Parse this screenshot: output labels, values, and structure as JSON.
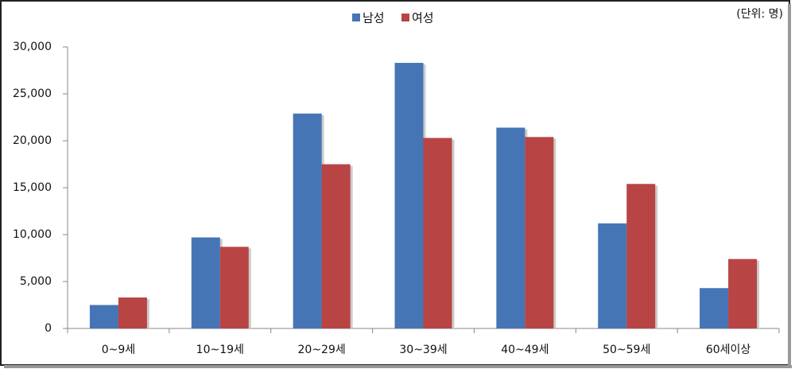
{
  "chart_data": {
    "type": "bar",
    "annotation": "(단위: 명)",
    "categories": [
      "0~9세",
      "10~19세",
      "20~29세",
      "30~39세",
      "40~49세",
      "50~59세",
      "60세이상"
    ],
    "series": [
      {
        "name": "남성",
        "color": "#4575b4",
        "values": [
          2500,
          9700,
          22900,
          28300,
          21400,
          11200,
          4300
        ]
      },
      {
        "name": "여성",
        "color": "#b94444",
        "values": [
          3300,
          8700,
          17500,
          20300,
          20400,
          15400,
          7400
        ]
      }
    ],
    "ylim": [
      0,
      30000
    ],
    "yticks": [
      0,
      {
        "value": 5000,
        "label": "5,000"
      },
      {
        "value": 10000,
        "label": "10,000"
      },
      {
        "value": 15000,
        "label": "15,000"
      },
      {
        "value": 20000,
        "label": "20,000"
      },
      {
        "value": 25000,
        "label": "25,000"
      },
      {
        "value": 30000,
        "label": "30,000"
      }
    ],
    "grid": false,
    "legend": "top"
  }
}
